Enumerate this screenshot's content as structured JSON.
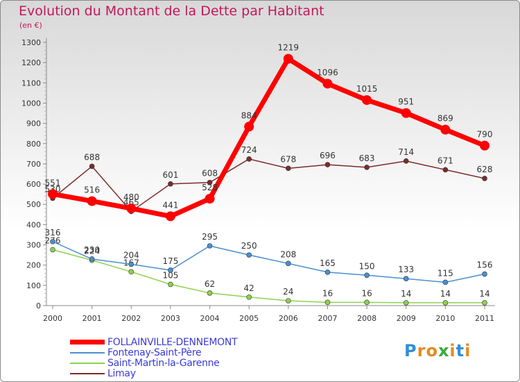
{
  "title": "Evolution du Montant de la Dette par Habitant",
  "subtitle": "(en €)",
  "brand": {
    "letters": [
      "P",
      "r",
      "o",
      "x",
      "i",
      "t",
      "i"
    ],
    "colors": [
      "#2f8fd6",
      "#e58a1f",
      "#e58a1f",
      "#3aa83a",
      "#e58a1f",
      "#2f8fd6",
      "#e58a1f"
    ]
  },
  "chart_data": {
    "type": "line",
    "title": "Evolution du Montant de la Dette par Habitant",
    "subtitle": "(en €)",
    "xlabel": "",
    "ylabel": "",
    "x": [
      "2000",
      "2001",
      "2002",
      "2003",
      "2004",
      "2005",
      "2006",
      "2007",
      "2008",
      "2009",
      "2010",
      "2011"
    ],
    "ylim": [
      0,
      1300
    ],
    "yticks": [
      0,
      100,
      200,
      300,
      400,
      500,
      600,
      700,
      800,
      900,
      1000,
      1100,
      1200,
      1300
    ],
    "grid": false,
    "legend": "bottom-left",
    "series": [
      {
        "name": "FOLLAINVILLE-DENNEMONT",
        "color": "#ff0000",
        "values": [
          551,
          516,
          480,
          441,
          528,
          884,
          1219,
          1096,
          1015,
          951,
          869,
          790
        ]
      },
      {
        "name": "Fontenay-Saint-Père",
        "color": "#4a8fd0",
        "values": [
          316,
          230,
          204,
          175,
          295,
          250,
          208,
          165,
          150,
          133,
          115,
          156
        ]
      },
      {
        "name": "Saint-Martin-la-Garenne",
        "color": "#8fd14f",
        "values": [
          276,
          224,
          167,
          105,
          62,
          42,
          24,
          16,
          16,
          14,
          14,
          14
        ]
      },
      {
        "name": "Limay",
        "color": "#7b2c2c",
        "values": [
          530,
          688,
          465,
          601,
          608,
          724,
          678,
          696,
          683,
          714,
          671,
          628
        ]
      }
    ]
  }
}
